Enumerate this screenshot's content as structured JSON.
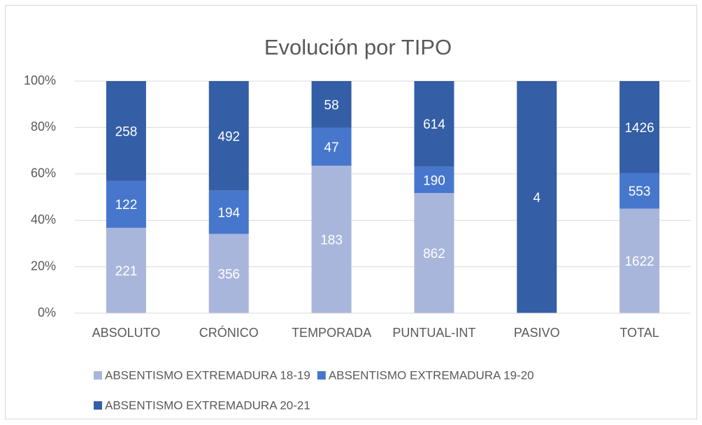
{
  "chart_data": {
    "type": "bar",
    "stacking": "percent",
    "title": "Evolución por TIPO",
    "categories": [
      "ABSOLUTO",
      "CRÓNICO",
      "TEMPORADA",
      "PUNTUAL-INT",
      "PASIVO",
      "TOTAL"
    ],
    "series": [
      {
        "name": "ABSENTISMO EXTREMADURA 18-19",
        "color": "#a9b6dc",
        "values": [
          221,
          356,
          183,
          862,
          0,
          1622
        ]
      },
      {
        "name": "ABSENTISMO EXTREMADURA 19-20",
        "color": "#4677cd",
        "values": [
          122,
          194,
          47,
          190,
          0,
          553
        ]
      },
      {
        "name": "ABSENTISMO EXTREMADURA 20-21",
        "color": "#345ea6",
        "values": [
          258,
          492,
          58,
          614,
          4,
          1426
        ]
      }
    ],
    "ylim": [
      0,
      100
    ],
    "yticks": [
      {
        "value": 0,
        "label": "0%"
      },
      {
        "value": 20,
        "label": "20%"
      },
      {
        "value": 40,
        "label": "40%"
      },
      {
        "value": 60,
        "label": "60%"
      },
      {
        "value": 80,
        "label": "80%"
      },
      {
        "value": 100,
        "label": "100%"
      }
    ],
    "grid": true,
    "legend": "bottom"
  }
}
